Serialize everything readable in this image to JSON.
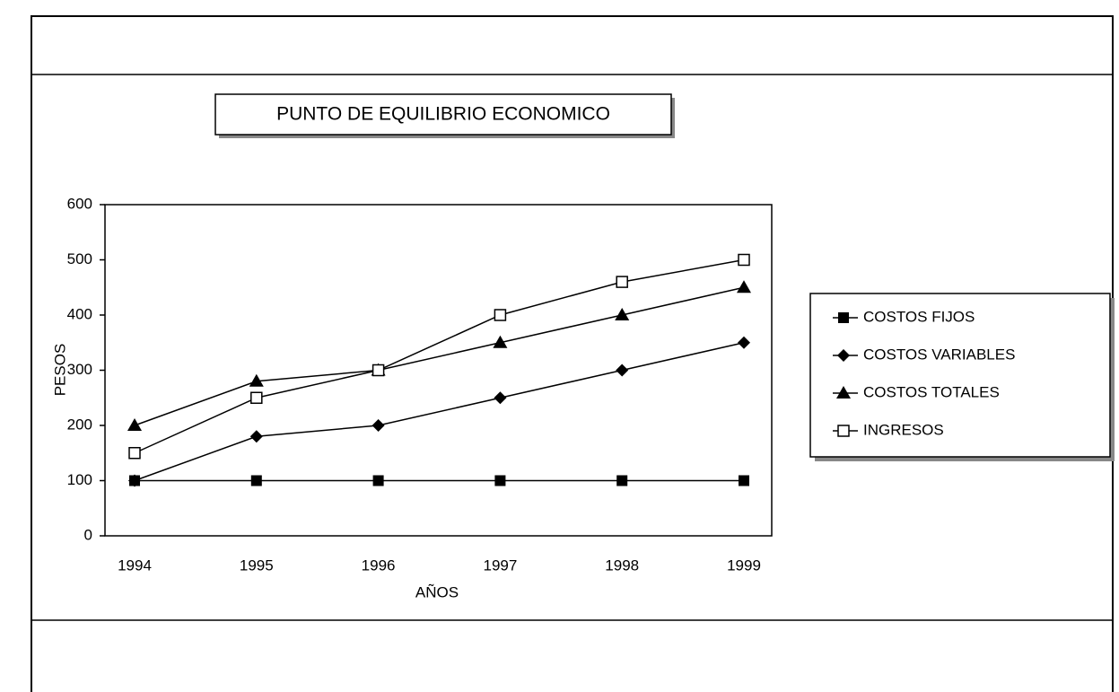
{
  "chart_data": {
    "type": "line",
    "title": "PUNTO DE EQUILIBRIO ECONOMICO",
    "x_label": "AÑOS",
    "y_label": "PESOS",
    "categories": [
      "1994",
      "1995",
      "1996",
      "1997",
      "1998",
      "1999"
    ],
    "series": [
      {
        "name": "COSTOS FIJOS",
        "color": "#000000",
        "marker": "square",
        "values": [
          100,
          100,
          100,
          100,
          100,
          100
        ]
      },
      {
        "name": "COSTOS VARIABLES",
        "color": "#000000",
        "marker": "diamond",
        "values": [
          100,
          180,
          200,
          250,
          300,
          350
        ]
      },
      {
        "name": "COSTOS TOTALES",
        "color": "#000000",
        "marker": "triangle",
        "values": [
          200,
          280,
          300,
          350,
          400,
          450
        ]
      },
      {
        "name": "INGRESOS",
        "color": "#000000",
        "marker": "open-square",
        "values": [
          150,
          250,
          300,
          400,
          460,
          500
        ]
      }
    ],
    "ylim": [
      0,
      600
    ],
    "yticks": [
      0,
      100,
      200,
      300,
      400,
      500,
      600
    ],
    "grid": false,
    "legend": "right"
  }
}
